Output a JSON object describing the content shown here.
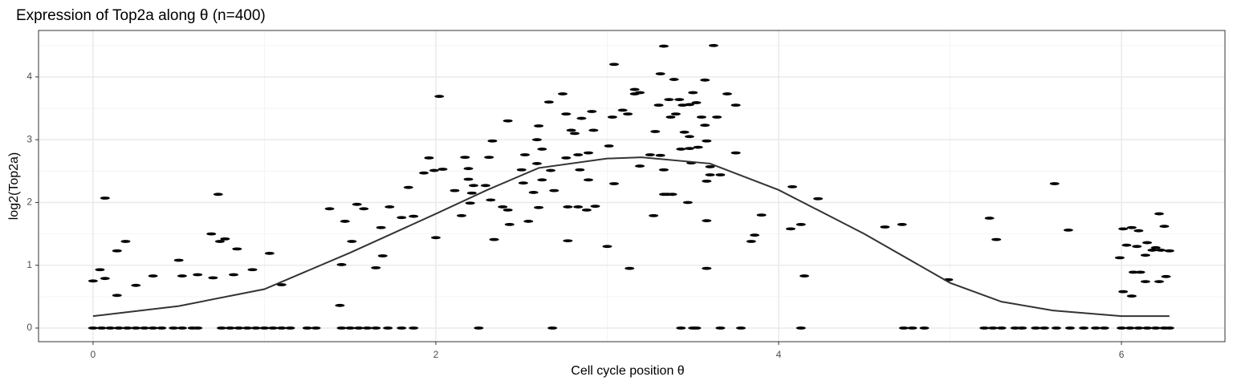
{
  "chart_data": {
    "type": "scatter",
    "title": "Expression of Top2a along θ (n=400)",
    "x_label": "Cell cycle position θ",
    "y_label": "log2(Top2a)",
    "xlim": [
      -0.318,
      6.604
    ],
    "ylim": [
      -0.217,
      4.74
    ],
    "xticks": [
      0,
      2,
      4,
      6
    ],
    "yticks": [
      0,
      1,
      2,
      3,
      4
    ],
    "x_minor_ticks": [
      1,
      3,
      5
    ],
    "y_minor_ticks": [
      0.5,
      1.5,
      2.5,
      3.5,
      4.5
    ],
    "grid": true,
    "point_color": "#000000",
    "line_color": "#333333",
    "x": [
      0.0,
      0.05,
      0.1,
      0.15,
      0.2,
      0.25,
      0.3,
      0.35,
      0.4,
      0.47,
      0.52,
      0.58,
      0.61,
      0.75,
      0.8,
      0.85,
      0.9,
      0.95,
      1.0,
      1.05,
      1.1,
      1.15,
      1.25,
      1.3,
      1.45,
      1.5,
      1.55,
      1.6,
      1.65,
      1.72,
      1.8,
      1.87,
      2.25,
      2.68,
      3.43,
      3.5,
      3.52,
      3.66,
      3.78,
      4.13,
      4.73,
      4.78,
      4.85,
      5.2,
      5.25,
      5.3,
      5.38,
      5.42,
      5.5,
      5.55,
      5.62,
      5.7,
      5.78,
      5.85,
      5.9,
      6.0,
      6.05,
      6.1,
      6.15,
      6.2,
      6.25,
      6.28,
      0.0,
      0.04,
      0.07,
      0.07,
      0.14,
      0.14,
      0.19,
      0.25,
      0.35,
      0.5,
      0.52,
      0.61,
      0.69,
      0.7,
      0.73,
      0.74,
      0.77,
      0.82,
      0.84,
      0.93,
      1.03,
      1.1,
      1.38,
      1.44,
      1.45,
      1.47,
      1.51,
      1.54,
      1.58,
      1.65,
      1.68,
      1.73,
      1.69,
      1.8,
      1.84,
      1.87,
      1.93,
      1.96,
      1.99,
      2.0,
      2.02,
      2.04,
      2.11,
      2.15,
      2.17,
      2.19,
      2.19,
      2.2,
      2.21,
      2.22,
      2.29,
      2.31,
      2.32,
      2.33,
      2.34,
      2.39,
      2.42,
      2.42,
      2.43,
      2.5,
      2.51,
      2.52,
      2.54,
      2.57,
      2.59,
      2.59,
      2.6,
      2.6,
      2.62,
      2.62,
      2.66,
      2.67,
      2.69,
      2.74,
      2.76,
      2.76,
      2.77,
      2.77,
      2.79,
      2.81,
      2.83,
      2.83,
      2.84,
      2.85,
      2.88,
      2.89,
      2.89,
      2.91,
      2.92,
      2.93,
      3.0,
      3.01,
      3.03,
      3.04,
      3.04,
      3.09,
      3.12,
      3.13,
      3.16,
      3.16,
      3.19,
      3.19,
      3.25,
      3.27,
      3.28,
      3.3,
      3.31,
      3.31,
      3.33,
      3.33,
      3.33,
      3.35,
      3.36,
      3.37,
      3.38,
      3.39,
      3.4,
      3.42,
      3.43,
      3.44,
      3.45,
      3.47,
      3.48,
      3.48,
      3.48,
      3.49,
      3.5,
      3.52,
      3.53,
      3.55,
      3.57,
      3.57,
      3.58,
      3.58,
      3.58,
      3.58,
      3.6,
      3.6,
      3.62,
      3.64,
      3.66,
      3.7,
      3.75,
      3.75,
      3.84,
      3.86,
      3.9,
      4.07,
      4.08,
      4.13,
      4.15,
      4.23,
      4.62,
      4.72,
      4.99,
      5.23,
      5.27,
      5.61,
      5.69,
      5.99,
      6.01,
      6.01,
      6.03,
      6.06,
      6.06,
      6.07,
      6.09,
      6.1,
      6.11,
      6.14,
      6.14,
      6.15,
      6.18,
      6.2,
      6.22,
      6.22,
      6.23,
      6.25,
      6.26,
      6.28
    ],
    "values": [
      0,
      0,
      0,
      0,
      0,
      0,
      0,
      0,
      0,
      0,
      0,
      0,
      0,
      0,
      0,
      0,
      0,
      0,
      0,
      0,
      0,
      0,
      0,
      0,
      0,
      0,
      0,
      0,
      0,
      0,
      0,
      0,
      0,
      0,
      0,
      0,
      0,
      0,
      0,
      0,
      0,
      0,
      0,
      0,
      0,
      0,
      0,
      0,
      0,
      0,
      0,
      0,
      0,
      0,
      0,
      0,
      0,
      0,
      0,
      0,
      0,
      0,
      0.75,
      0.93,
      2.07,
      0.79,
      1.23,
      0.52,
      1.38,
      0.68,
      0.83,
      1.08,
      0.83,
      0.85,
      1.5,
      0.8,
      2.13,
      1.38,
      1.42,
      0.85,
      1.26,
      0.93,
      1.19,
      0.69,
      1.9,
      0.36,
      1.01,
      1.7,
      1.38,
      1.97,
      1.9,
      0.96,
      1.6,
      1.93,
      1.15,
      1.76,
      2.24,
      1.78,
      2.47,
      2.71,
      2.51,
      1.44,
      3.69,
      2.53,
      2.19,
      1.79,
      2.72,
      2.54,
      2.37,
      1.99,
      2.15,
      2.27,
      2.27,
      2.72,
      2.04,
      2.98,
      1.41,
      1.93,
      3.3,
      1.88,
      1.65,
      2.52,
      2.31,
      2.76,
      1.7,
      2.16,
      2.62,
      3.0,
      3.22,
      1.92,
      2.85,
      2.36,
      3.6,
      2.51,
      2.19,
      3.73,
      2.71,
      3.41,
      1.93,
      1.39,
      3.15,
      3.1,
      1.93,
      2.76,
      2.52,
      3.34,
      1.88,
      2.36,
      2.79,
      3.45,
      3.15,
      1.94,
      1.3,
      2.9,
      3.36,
      2.3,
      4.2,
      3.47,
      3.41,
      0.95,
      3.73,
      3.8,
      3.75,
      2.58,
      2.76,
      1.79,
      3.13,
      3.55,
      4.05,
      2.75,
      4.49,
      2.52,
      2.13,
      2.13,
      3.64,
      3.36,
      2.13,
      3.96,
      3.41,
      3.64,
      2.85,
      3.55,
      3.12,
      2.0,
      3.56,
      2.86,
      3.05,
      2.63,
      3.75,
      3.59,
      2.88,
      3.36,
      3.95,
      3.23,
      2.98,
      2.34,
      1.71,
      0.95,
      2.57,
      2.44,
      4.5,
      3.36,
      2.44,
      3.73,
      3.55,
      2.79,
      1.38,
      1.48,
      1.8,
      1.58,
      2.25,
      1.65,
      0.83,
      2.06,
      1.61,
      1.65,
      0.77,
      1.75,
      1.41,
      2.3,
      1.56,
      1.12,
      1.58,
      0.58,
      1.32,
      1.6,
      0.51,
      0.89,
      1.3,
      1.55,
      0.89,
      0.74,
      1.16,
      1.36,
      1.24,
      1.28,
      1.82,
      0.74,
      1.24,
      1.62,
      0.82,
      1.23
    ],
    "smooth": {
      "x": [
        0,
        0.5,
        1,
        1.5,
        2,
        2.3,
        2.6,
        3,
        3.2,
        3.6,
        4,
        4.5,
        5,
        5.3,
        5.6,
        6,
        6.28
      ],
      "values": [
        0.19,
        0.35,
        0.62,
        1.2,
        1.82,
        2.2,
        2.55,
        2.7,
        2.72,
        2.62,
        2.2,
        1.5,
        0.72,
        0.42,
        0.28,
        0.19,
        0.19
      ]
    }
  }
}
